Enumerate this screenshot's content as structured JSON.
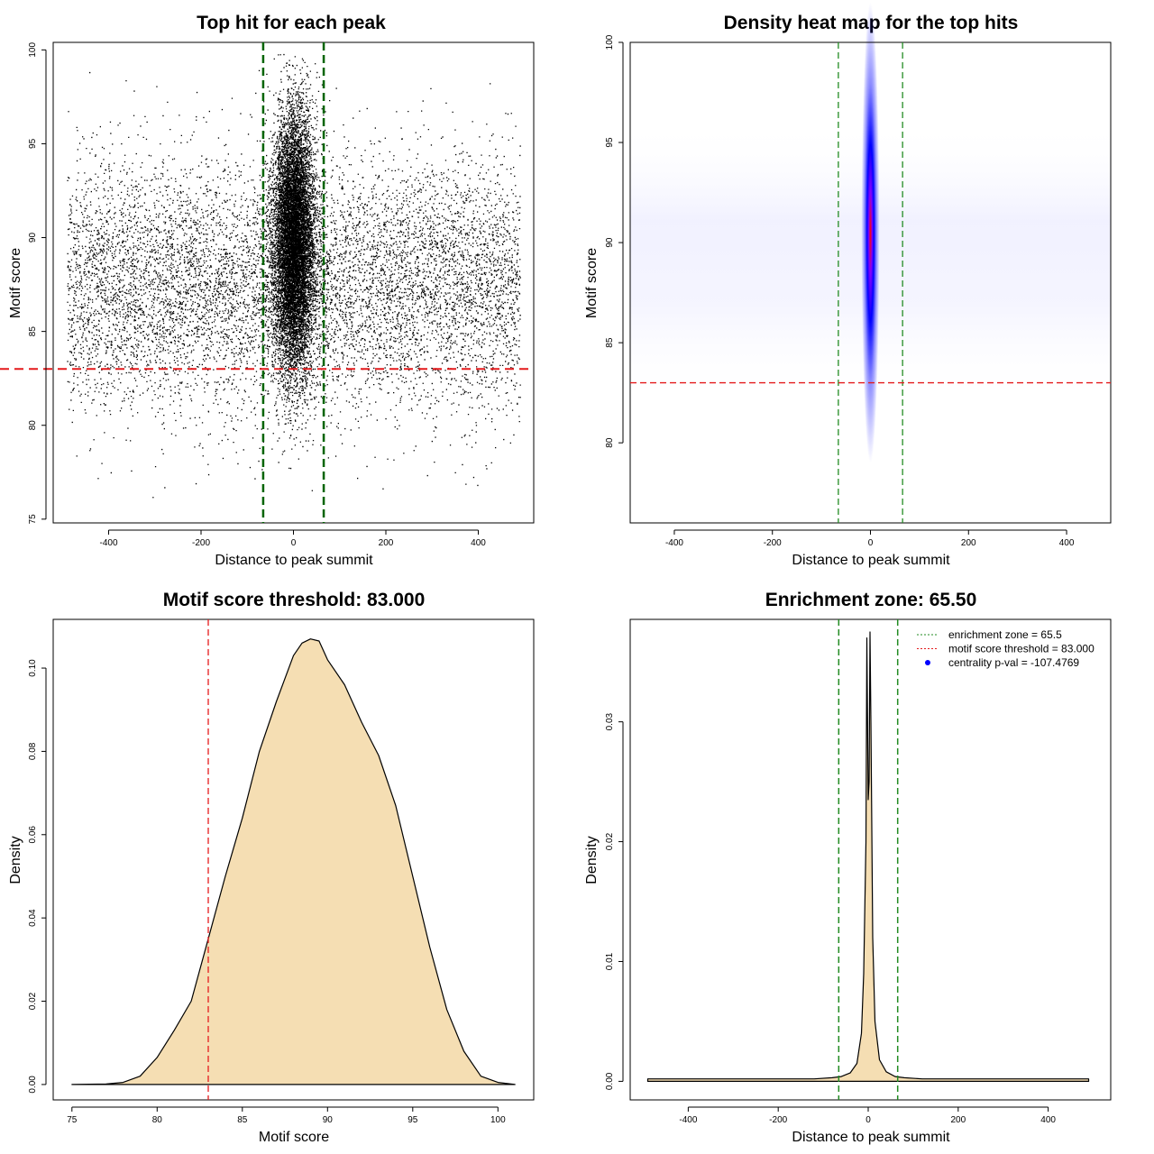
{
  "chart_data": [
    {
      "id": "p1",
      "type": "scatter",
      "title": "Top hit for each peak",
      "xlabel": "Distance to peak summit",
      "ylabel": "Motif score",
      "xlim": [
        -520,
        520
      ],
      "ylim": [
        74.8,
        100.4
      ],
      "xticks": [
        -400,
        -200,
        0,
        200,
        400
      ],
      "yticks": [
        75,
        80,
        85,
        90,
        95,
        100
      ],
      "vlines": [
        -65.5,
        65.5
      ],
      "hline": 83.0,
      "points_description_source": {
        "background": {
          "x_range": [
            -490,
            490
          ],
          "score_mean": 87.5,
          "score_sd": 3.3
        },
        "central": {
          "x_sd": 22,
          "score_mean": 89.8,
          "score_sd": 3.4
        }
      },
      "colors": {
        "points": "#000000",
        "vline": "#006400",
        "hline": "#e41a1c"
      }
    },
    {
      "id": "p2",
      "type": "heatmap",
      "title": "Density heat map for the top hits",
      "xlabel": "Distance to peak summit",
      "ylabel": "Motif score",
      "xlim": [
        -490,
        490
      ],
      "ylim": [
        76,
        100
      ],
      "xticks": [
        -400,
        -200,
        0,
        200,
        400
      ],
      "yticks": [
        80,
        85,
        90,
        95,
        100
      ],
      "vlines": [
        -65.5,
        65.5
      ],
      "hline": 83.0,
      "peak": {
        "x": 0,
        "y": 90.5
      },
      "colors": {
        "low": "#ffffff",
        "mid": "#0000ff",
        "high": "#ff0000",
        "vline": "#228b22",
        "hline": "#e41a1c"
      }
    },
    {
      "id": "p3",
      "type": "area",
      "title": "Motif score threshold: 83.000",
      "xlabel": "Motif score",
      "ylabel": "Density",
      "xlim": [
        73.9,
        102.1
      ],
      "ylim": [
        -0.0037,
        0.1117
      ],
      "xticks": [
        75,
        80,
        85,
        90,
        95,
        100
      ],
      "yticks": [
        0.0,
        0.02,
        0.04,
        0.06,
        0.08,
        0.1
      ],
      "ytick_labels": [
        "0.00",
        "0.02",
        "0.04",
        "0.06",
        "0.08",
        "0.10"
      ],
      "vline": 83.0,
      "x": [
        75,
        77,
        78,
        79,
        80,
        81,
        82,
        83,
        84,
        85,
        86,
        87,
        88,
        88.5,
        89,
        89.5,
        90,
        91,
        92,
        93,
        94,
        95,
        96,
        97,
        98,
        99,
        100,
        101
      ],
      "y": [
        0.0,
        0.0001,
        0.0005,
        0.002,
        0.0065,
        0.013,
        0.02,
        0.035,
        0.05,
        0.064,
        0.08,
        0.092,
        0.103,
        0.106,
        0.107,
        0.1065,
        0.102,
        0.096,
        0.087,
        0.079,
        0.067,
        0.05,
        0.033,
        0.018,
        0.008,
        0.002,
        0.0005,
        0.0
      ],
      "colors": {
        "fill": "#f5deb3",
        "line": "#000000",
        "vline": "#e41a1c"
      }
    },
    {
      "id": "p4",
      "type": "area",
      "title": "Enrichment zone: 65.50",
      "xlabel": "Distance to peak summit",
      "ylabel": "Density",
      "xlim": [
        -529,
        539
      ],
      "ylim": [
        -0.00155,
        0.03855
      ],
      "xticks": [
        -400,
        -200,
        0,
        200,
        400
      ],
      "yticks": [
        0.0,
        0.01,
        0.02,
        0.03
      ],
      "ytick_labels": [
        "0.00",
        "0.01",
        "0.02",
        "0.03"
      ],
      "vlines": [
        -65.5,
        65.5
      ],
      "x": [
        -490,
        -400,
        -300,
        -200,
        -120,
        -80,
        -60,
        -40,
        -25,
        -15,
        -10,
        -5,
        -3,
        0,
        2,
        4,
        6,
        10,
        15,
        25,
        40,
        60,
        80,
        120,
        200,
        300,
        400,
        490
      ],
      "y": [
        0.0002,
        0.0002,
        0.0002,
        0.0002,
        0.0002,
        0.0003,
        0.0004,
        0.0007,
        0.0015,
        0.004,
        0.009,
        0.02,
        0.037,
        0.0235,
        0.025,
        0.0375,
        0.03,
        0.012,
        0.005,
        0.0018,
        0.0008,
        0.0004,
        0.0003,
        0.0002,
        0.0002,
        0.0002,
        0.0002,
        0.0002
      ],
      "legend": [
        {
          "label": "enrichment zone = 65.5",
          "color": "#228b22",
          "kind": "dotted-line"
        },
        {
          "label": "motif score threshold = 83.000",
          "color": "#e41a1c",
          "kind": "dotted-line"
        },
        {
          "label": "centrality p-val = -107.4769",
          "color": "#0000ff",
          "kind": "point"
        }
      ],
      "legend_position": "top-right",
      "colors": {
        "fill": "#f5deb3",
        "line": "#000000",
        "vline": "#228b22"
      }
    }
  ]
}
